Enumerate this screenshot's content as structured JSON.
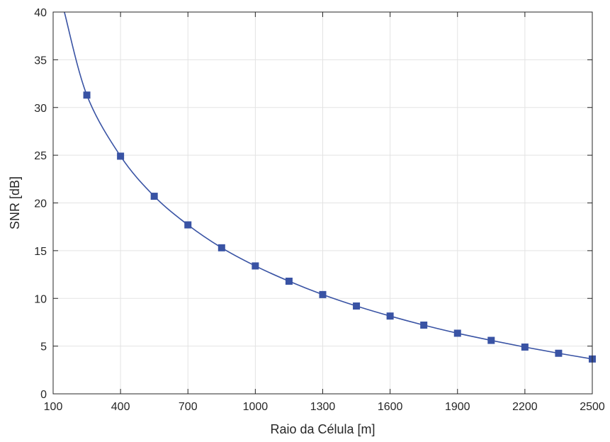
{
  "chart_data": {
    "type": "line",
    "title": "",
    "xlabel": "Raio da Célula [m]",
    "ylabel": "SNR [dB]",
    "xlim": [
      100,
      2500
    ],
    "ylim": [
      0,
      40
    ],
    "xticks": [
      100,
      400,
      700,
      1000,
      1300,
      1600,
      1900,
      2200,
      2500
    ],
    "yticks": [
      0,
      5,
      10,
      15,
      20,
      25,
      30,
      35,
      40
    ],
    "grid": true,
    "series": [
      {
        "color": "#3953a4",
        "marker": "square",
        "curve_start": [
          150,
          40
        ],
        "x": [
          250,
          400,
          550,
          700,
          850,
          1000,
          1150,
          1300,
          1450,
          1600,
          1750,
          1900,
          2050,
          2200,
          2350,
          2500
        ],
        "values": [
          31.3,
          24.9,
          20.7,
          17.7,
          15.3,
          13.4,
          11.8,
          10.4,
          9.2,
          8.15,
          7.2,
          6.35,
          5.6,
          4.9,
          4.25,
          3.65
        ]
      }
    ]
  }
}
